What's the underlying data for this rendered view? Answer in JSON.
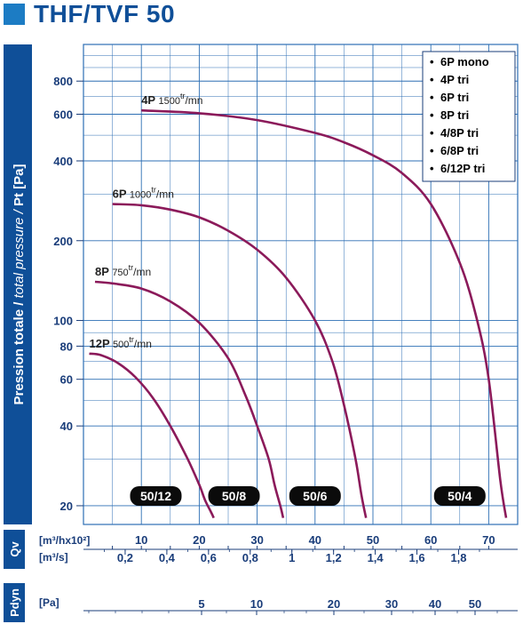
{
  "title": "THF/TVF 50",
  "colors": {
    "band": "#0f4f98",
    "grid": "#2d6fb4",
    "curve": "#8b1a5a",
    "dark": "#1a3d7a",
    "legend_bullet": "#000000",
    "text": "#222222"
  },
  "chart_data": {
    "type": "line",
    "title": "THF/TVF 50",
    "ylabel": "Pression totale / total pressure / Pt [Pa]",
    "y_scale": "log",
    "ylim": [
      17,
      1100
    ],
    "y_ticks": [
      20,
      40,
      60,
      80,
      100,
      200,
      400,
      600,
      800
    ],
    "xlabel_primary": "[m³/hx10²]",
    "xlabel_secondary": "[m³/s]",
    "xlabel_pdyn": "[Pa]",
    "x_axis_label": "Qv",
    "pdyn_axis_label": "Pdyn",
    "xlim": [
      0,
      75
    ],
    "x_ticks": [
      10,
      20,
      30,
      40,
      50,
      60,
      70
    ],
    "x_ticks_m3s": [
      "0,2",
      "0,4",
      "0,6",
      "0,8",
      "1",
      "1,2",
      "1,4",
      "1,6",
      "1,8"
    ],
    "x_ticks_m3s_values": [
      0.2,
      0.4,
      0.6,
      0.8,
      1.0,
      1.2,
      1.4,
      1.6,
      1.8
    ],
    "pdyn_ticks": [
      5,
      10,
      20,
      30,
      40,
      50
    ],
    "series": [
      {
        "name": "4P",
        "label": "4P",
        "speed": "1500",
        "unit_sup": "tr",
        "unit_sub": "/mn",
        "x": [
          10,
          20,
          30,
          40,
          45,
          50,
          55,
          60,
          65,
          68,
          70,
          72,
          73
        ],
        "y": [
          620,
          605,
          570,
          510,
          470,
          420,
          360,
          275,
          165,
          100,
          60,
          25,
          18
        ]
      },
      {
        "name": "6P",
        "label": "6P",
        "speed": "1000",
        "unit_sup": "tr",
        "unit_sub": "/mn",
        "x": [
          5,
          10,
          15,
          20,
          25,
          30,
          35,
          40,
          43,
          45,
          47,
          48,
          48.8
        ],
        "y": [
          275,
          272,
          262,
          245,
          218,
          185,
          145,
          100,
          70,
          48,
          30,
          22,
          18
        ]
      },
      {
        "name": "8P",
        "label": "8P",
        "speed": "750",
        "unit_sup": "tr",
        "unit_sub": "/mn",
        "x": [
          2,
          5,
          10,
          15,
          20,
          25,
          28,
          30,
          32,
          33,
          34,
          34.5
        ],
        "y": [
          140,
          138,
          132,
          118,
          98,
          72,
          52,
          40,
          30,
          24,
          20,
          18
        ]
      },
      {
        "name": "12P",
        "label": "12P",
        "speed": "500",
        "unit_sup": "tr",
        "unit_sub": "/mn",
        "x": [
          1,
          3,
          6,
          9,
          12,
          15,
          18,
          20,
          21,
          22,
          22.5
        ],
        "y": [
          75,
          74,
          69,
          61,
          51,
          40,
          30,
          24,
          21,
          19,
          18
        ]
      }
    ],
    "zones": [
      {
        "label": "50/12",
        "x": 12.5
      },
      {
        "label": "50/8",
        "x": 26
      },
      {
        "label": "50/6",
        "x": 40
      },
      {
        "label": "50/4",
        "x": 65
      }
    ],
    "legend": [
      "6P mono",
      "4P tri",
      "6P tri",
      "8P tri",
      "4/8P tri",
      "6/8P tri",
      "6/12P tri"
    ],
    "legend_position": "top-right"
  }
}
